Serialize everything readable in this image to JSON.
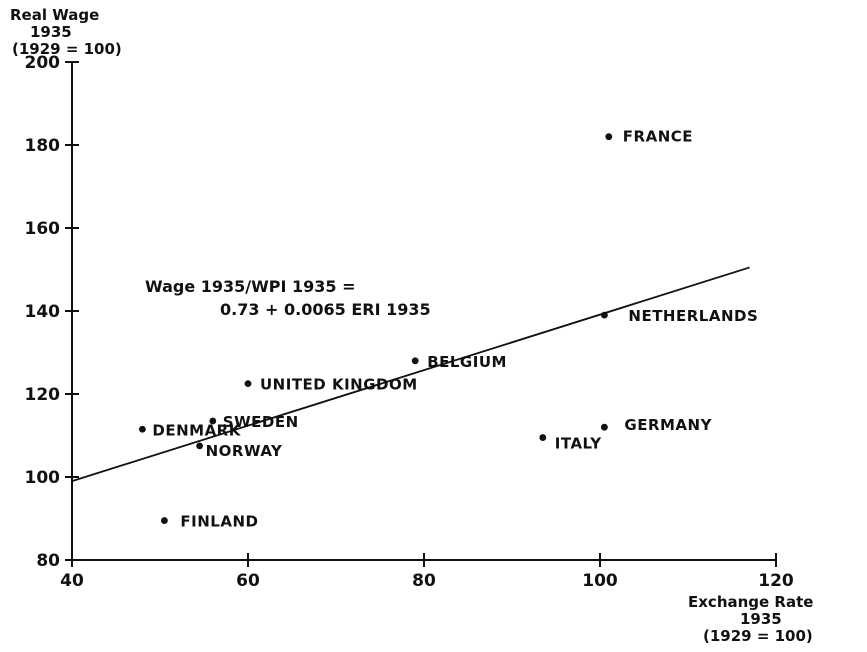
{
  "chart_data": {
    "type": "scatter",
    "title": "",
    "ylabel_lines": [
      "Real Wage",
      "1935",
      "(1929 = 100)"
    ],
    "xlabel_lines": [
      "Exchange Rate",
      "1935",
      "(1929 = 100)"
    ],
    "xlim": [
      40,
      120
    ],
    "ylim": [
      80,
      200
    ],
    "x_ticks": [
      40,
      60,
      80,
      100,
      120
    ],
    "y_ticks": [
      80,
      100,
      120,
      140,
      160,
      180,
      200
    ],
    "grid": false,
    "points": [
      {
        "name": "FRANCE",
        "x": 101,
        "y": 182
      },
      {
        "name": "NETHERLANDS",
        "x": 100.5,
        "y": 139
      },
      {
        "name": "BELGIUM",
        "x": 79,
        "y": 128
      },
      {
        "name": "UNITED KINGDOM",
        "x": 60,
        "y": 122.5
      },
      {
        "name": "SWEDEN",
        "x": 56,
        "y": 113.5
      },
      {
        "name": "DENMARK",
        "x": 48,
        "y": 111.5
      },
      {
        "name": "NORWAY",
        "x": 54.5,
        "y": 107.5
      },
      {
        "name": "GERMANY",
        "x": 100.5,
        "y": 112
      },
      {
        "name": "ITALY",
        "x": 93.5,
        "y": 109.5
      },
      {
        "name": "FINLAND",
        "x": 50.5,
        "y": 89.5
      }
    ],
    "regression": {
      "equation_lines": [
        "Wage 1935/WPI 1935 =",
        "0.73 + 0.0065 ERI 1935"
      ],
      "intercept": 0.73,
      "slope": 0.0065
    }
  }
}
